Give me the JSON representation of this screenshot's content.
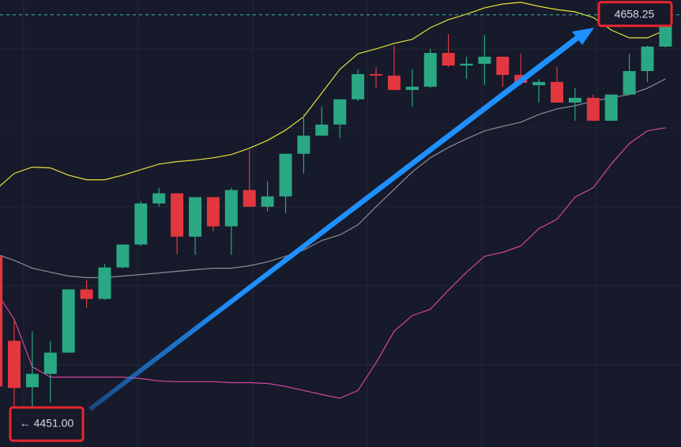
{
  "chart_data": {
    "type": "candlestick",
    "categories": [
      null,
      null,
      null,
      null,
      null,
      null,
      null,
      null,
      null,
      null,
      null,
      null,
      null,
      null,
      null,
      null,
      null,
      null,
      null,
      null,
      null,
      null,
      null,
      null,
      null,
      null,
      null,
      null,
      null,
      null,
      null,
      null,
      null,
      null,
      null,
      null,
      null,
      null
    ],
    "open": [
      4531.8,
      4487.6,
      4463.3,
      4470.3,
      4481.4,
      4514.5,
      4509.5,
      4526.0,
      4538.0,
      4559.5,
      4564.8,
      4542.1,
      4562.8,
      4547.5,
      4566.5,
      4557.8,
      4563.2,
      4585.5,
      4595.0,
      4600.8,
      4614.0,
      4627.2,
      4626.4,
      4618.9,
      4620.6,
      4638.3,
      4631.7,
      4632.6,
      4636.3,
      4626.8,
      4621.4,
      4623.1,
      4612.3,
      4614.8,
      4602.8,
      4616.5,
      4628.8,
      4641.6
    ],
    "high": [
      4533.9,
      4498.8,
      4492.6,
      4487.6,
      4514.5,
      4519.4,
      4527.7,
      4538.0,
      4560.7,
      4567.7,
      4564.8,
      4562.8,
      4562.8,
      4567.7,
      4587.5,
      4571.0,
      4585.5,
      4606.1,
      4610.3,
      4614.0,
      4629.7,
      4630.9,
      4642.1,
      4629.7,
      4640.4,
      4648.2,
      4636.3,
      4647.8,
      4636.3,
      4637.9,
      4624.7,
      4630.9,
      4619.8,
      4616.5,
      4616.5,
      4637.9,
      4642.1,
      4658.25
    ],
    "low": [
      4461.6,
      4451.0,
      4451.0,
      4455.4,
      4481.4,
      4505.0,
      4509.1,
      4525.6,
      4537.2,
      4557.8,
      4533.0,
      4532.6,
      4545.0,
      4532.6,
      4557.8,
      4555.3,
      4554.5,
      4575.2,
      4595.0,
      4593.7,
      4613.1,
      4619.8,
      4618.5,
      4610.3,
      4619.8,
      4630.9,
      4624.7,
      4621.4,
      4620.6,
      4621.4,
      4612.3,
      4612.3,
      4602.8,
      4602.8,
      4602.8,
      4616.5,
      4623.1,
      4641.2
    ],
    "close": [
      4463.7,
      4462.9,
      4470.3,
      4481.4,
      4514.5,
      4509.5,
      4526.0,
      4538.0,
      4559.5,
      4564.8,
      4542.1,
      4562.8,
      4547.5,
      4566.5,
      4557.8,
      4563.2,
      4585.5,
      4595.0,
      4600.8,
      4614.0,
      4627.2,
      4626.4,
      4618.9,
      4620.6,
      4638.3,
      4631.7,
      4632.6,
      4636.3,
      4626.8,
      4622.6,
      4623.1,
      4612.3,
      4614.8,
      4602.8,
      4616.5,
      4628.8,
      4641.6,
      4653.6
    ],
    "up_color": "#2aa884",
    "down_color": "#e2373f",
    "overlays": [
      {
        "color": "#e6e03a",
        "values": [
          4566.9,
          4575.2,
          4578.5,
          4578.1,
          4574.3,
          4571.9,
          4571.9,
          4574.3,
          4577.2,
          4580.1,
          4581.4,
          4582.2,
          4583.4,
          4585.1,
          4588.4,
          4592.5,
          4597.9,
          4604.9,
          4617.3,
          4629.7,
          4637.9,
          4640.4,
          4643.3,
          4645.4,
          4651.5,
          4655.7,
          4658.6,
          4661.9,
          4663.9,
          4664.8,
          4662.7,
          4661.0,
          4659.8,
          4656.9,
          4650.3,
          4646.2,
          4646.2,
          4650.3
        ]
      },
      {
        "color": "#8a8d99",
        "values": [
          4533.0,
          4529.7,
          4525.6,
          4523.5,
          4521.5,
          4520.7,
          4520.7,
          4521.5,
          4522.3,
          4523.1,
          4524.0,
          4524.8,
          4525.6,
          4525.6,
          4526.9,
          4528.9,
          4531.8,
          4535.1,
          4540.1,
          4543.0,
          4548.3,
          4557.8,
          4566.9,
          4576.0,
          4583.4,
          4588.8,
          4593.3,
          4597.5,
          4599.9,
          4602.0,
          4606.1,
          4609.0,
          4610.7,
          4613.1,
          4614.8,
          4616.5,
          4619.8,
          4624.7
        ]
      },
      {
        "color": "#d6459f",
        "values": [
          4513.2,
          4498.8,
          4474.0,
          4468.6,
          4468.6,
          4468.6,
          4468.6,
          4468.6,
          4467.8,
          4466.6,
          4466.2,
          4466.2,
          4466.2,
          4465.7,
          4465.7,
          4465.3,
          4463.7,
          4461.6,
          4459.5,
          4457.5,
          4461.6,
          4476.1,
          4492.6,
          4500.8,
          4504.1,
          4514.1,
          4523.5,
          4531.8,
          4533.9,
          4537.2,
          4546.3,
          4551.2,
          4562.8,
          4567.7,
          4580.1,
          4590.9,
          4597.5,
          4599.1
        ]
      }
    ],
    "price_labels": [
      {
        "value": 4451,
        "label": "← 4451.00"
      },
      {
        "value": 4658.25,
        "label": "4658.25"
      }
    ],
    "ylim": [
      4432,
      4666
    ]
  }
}
